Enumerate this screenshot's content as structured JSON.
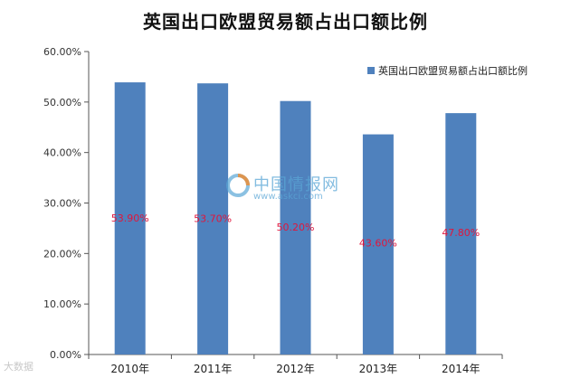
{
  "chart_data": {
    "type": "bar",
    "title": "英国出口欧盟贸易额占出口额比例",
    "categories": [
      "2010年",
      "2011年",
      "2012年",
      "2013年",
      "2014年"
    ],
    "series": [
      {
        "name": "英国出口欧盟贸易额占出口额比例",
        "values": [
          53.9,
          53.7,
          50.2,
          43.6,
          47.8
        ],
        "labels": [
          "53.90%",
          "53.70%",
          "50.20%",
          "43.60%",
          "47.80%"
        ]
      }
    ],
    "yticks": [
      "0.00%",
      "10.00%",
      "20.00%",
      "30.00%",
      "40.00%",
      "50.00%",
      "60.00%"
    ],
    "ylim": [
      0,
      60
    ],
    "xlabel": "",
    "ylabel": "",
    "grid": false,
    "legend": "top-right",
    "colors": {
      "bar": "#4f81bd",
      "data_label": "#e0163c",
      "axis": "#555555"
    }
  },
  "watermark": {
    "brand": "中国情报网",
    "url": "www.askci.com"
  },
  "source_badge": "大数据"
}
